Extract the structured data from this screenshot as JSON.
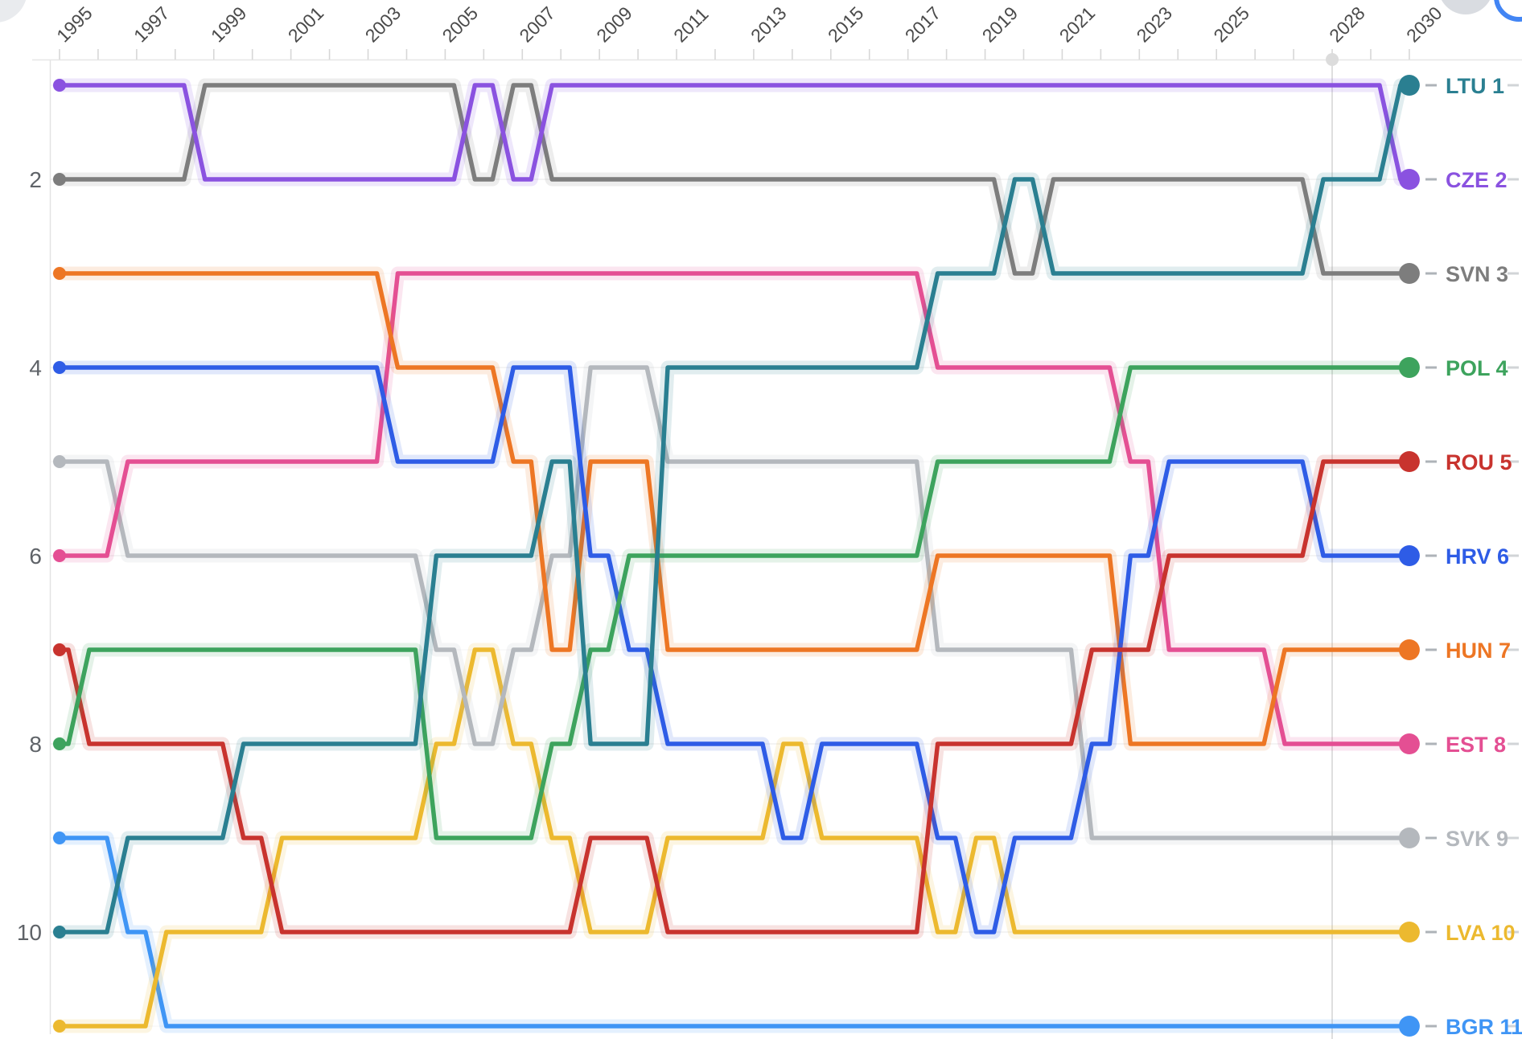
{
  "chart_data": {
    "type": "line",
    "subtype": "bump-rank-chart",
    "title": "",
    "xlabel": "",
    "ylabel": "",
    "x": [
      1995,
      1996,
      1997,
      1998,
      1999,
      2000,
      2001,
      2002,
      2003,
      2004,
      2005,
      2006,
      2007,
      2008,
      2009,
      2010,
      2011,
      2012,
      2013,
      2014,
      2015,
      2016,
      2017,
      2018,
      2019,
      2020,
      2021,
      2022,
      2023,
      2024,
      2025,
      2026,
      2027,
      2028,
      2029,
      2030
    ],
    "x_axis_labels": [
      "1995",
      "1997",
      "1999",
      "2001",
      "2003",
      "2005",
      "2007",
      "2009",
      "2011",
      "2013",
      "2015",
      "2017",
      "2019",
      "2021",
      "2023",
      "2025",
      "2028",
      "2030"
    ],
    "y_axis_ticks": [
      "2",
      "4",
      "6",
      "8",
      "10"
    ],
    "ylim": [
      1,
      11
    ],
    "y_inverted": true,
    "grid": "faint-horizontal",
    "legend_position": "right",
    "hover_year": "2028",
    "series": [
      {
        "code": "LTU",
        "label": "LTU 1",
        "final_rank": 1,
        "color": "#2a7f91",
        "ranks": [
          10,
          10,
          9,
          9,
          9,
          8,
          8,
          8,
          8,
          8,
          6,
          6,
          6,
          5,
          8,
          8,
          4,
          4,
          4,
          4,
          4,
          4,
          4,
          3,
          3,
          2,
          3,
          3,
          3,
          3,
          3,
          3,
          3,
          2,
          2,
          1
        ]
      },
      {
        "code": "CZE",
        "label": "CZE 2",
        "final_rank": 2,
        "color": "#8a52e0",
        "ranks": [
          1,
          1,
          1,
          1,
          2,
          2,
          2,
          2,
          2,
          2,
          2,
          1,
          2,
          1,
          1,
          1,
          1,
          1,
          1,
          1,
          1,
          1,
          1,
          1,
          1,
          1,
          1,
          1,
          1,
          1,
          1,
          1,
          1,
          1,
          1,
          2
        ]
      },
      {
        "code": "SVN",
        "label": "SVN 3",
        "final_rank": 3,
        "color": "#7d7d7d",
        "ranks": [
          2,
          2,
          2,
          2,
          1,
          1,
          1,
          1,
          1,
          1,
          1,
          2,
          1,
          2,
          2,
          2,
          2,
          2,
          2,
          2,
          2,
          2,
          2,
          2,
          2,
          3,
          2,
          2,
          2,
          2,
          2,
          2,
          2,
          3,
          3,
          3
        ]
      },
      {
        "code": "POL",
        "label": "POL 4",
        "final_rank": 4,
        "color": "#3da35d",
        "ranks": [
          8,
          7,
          7,
          7,
          7,
          7,
          7,
          7,
          7,
          7,
          9,
          9,
          9,
          8,
          7,
          6,
          6,
          6,
          6,
          6,
          6,
          6,
          6,
          5,
          5,
          5,
          5,
          5,
          4,
          4,
          4,
          4,
          4,
          4,
          4,
          4
        ]
      },
      {
        "code": "ROU",
        "label": "ROU 5",
        "final_rank": 5,
        "color": "#c8332e",
        "ranks": [
          7,
          8,
          8,
          8,
          8,
          9,
          10,
          10,
          10,
          10,
          10,
          10,
          10,
          10,
          9,
          9,
          10,
          10,
          10,
          10,
          10,
          10,
          10,
          8,
          8,
          8,
          8,
          7,
          7,
          6,
          6,
          6,
          6,
          5,
          5,
          5
        ]
      },
      {
        "code": "HRV",
        "label": "HRV 6",
        "final_rank": 6,
        "color": "#2e5ce6",
        "ranks": [
          4,
          4,
          4,
          4,
          4,
          4,
          4,
          4,
          4,
          5,
          5,
          5,
          4,
          4,
          6,
          7,
          8,
          8,
          8,
          9,
          8,
          8,
          8,
          9,
          10,
          9,
          9,
          8,
          6,
          5,
          5,
          5,
          5,
          6,
          6,
          6
        ]
      },
      {
        "code": "HUN",
        "label": "HUN 7",
        "final_rank": 7,
        "color": "#ed7624",
        "ranks": [
          3,
          3,
          3,
          3,
          3,
          3,
          3,
          3,
          3,
          4,
          4,
          4,
          5,
          7,
          5,
          5,
          7,
          7,
          7,
          7,
          7,
          7,
          7,
          6,
          6,
          6,
          6,
          6,
          8,
          8,
          8,
          8,
          7,
          7,
          7,
          7
        ]
      },
      {
        "code": "EST",
        "label": "EST 8",
        "final_rank": 8,
        "color": "#e44f93",
        "ranks": [
          6,
          6,
          5,
          5,
          5,
          5,
          5,
          5,
          5,
          3,
          3,
          3,
          3,
          3,
          3,
          3,
          3,
          3,
          3,
          3,
          3,
          3,
          3,
          4,
          4,
          4,
          4,
          4,
          5,
          7,
          7,
          7,
          8,
          8,
          8,
          8
        ]
      },
      {
        "code": "SVK",
        "label": "SVK 9",
        "final_rank": 9,
        "color": "#b4b8bd",
        "ranks": [
          5,
          5,
          6,
          6,
          6,
          6,
          6,
          6,
          6,
          6,
          7,
          8,
          7,
          6,
          4,
          4,
          5,
          5,
          5,
          5,
          5,
          5,
          5,
          7,
          7,
          7,
          7,
          9,
          9,
          9,
          9,
          9,
          9,
          9,
          9,
          9
        ]
      },
      {
        "code": "LVA",
        "label": "LVA 10",
        "final_rank": 10,
        "color": "#ecb92f",
        "ranks": [
          11,
          11,
          11,
          10,
          10,
          10,
          9,
          9,
          9,
          9,
          8,
          7,
          8,
          9,
          10,
          10,
          9,
          9,
          9,
          8,
          9,
          9,
          9,
          10,
          9,
          10,
          10,
          10,
          10,
          10,
          10,
          10,
          10,
          10,
          10,
          10
        ]
      },
      {
        "code": "BGR",
        "label": "BGR 11",
        "final_rank": 11,
        "color": "#3f95f5",
        "ranks": [
          9,
          9,
          10,
          11,
          11,
          11,
          11,
          11,
          11,
          11,
          11,
          11,
          11,
          11,
          11,
          11,
          11,
          11,
          11,
          11,
          11,
          11,
          11,
          11,
          11,
          11,
          11,
          11,
          11,
          11,
          11,
          11,
          11,
          11,
          11,
          11
        ]
      }
    ],
    "legend_dash": "-"
  },
  "ui": {
    "corner_buttons": [
      "top-left-partial-button",
      "top-right-gray-circle-button",
      "top-right-blue-ring-button"
    ]
  }
}
